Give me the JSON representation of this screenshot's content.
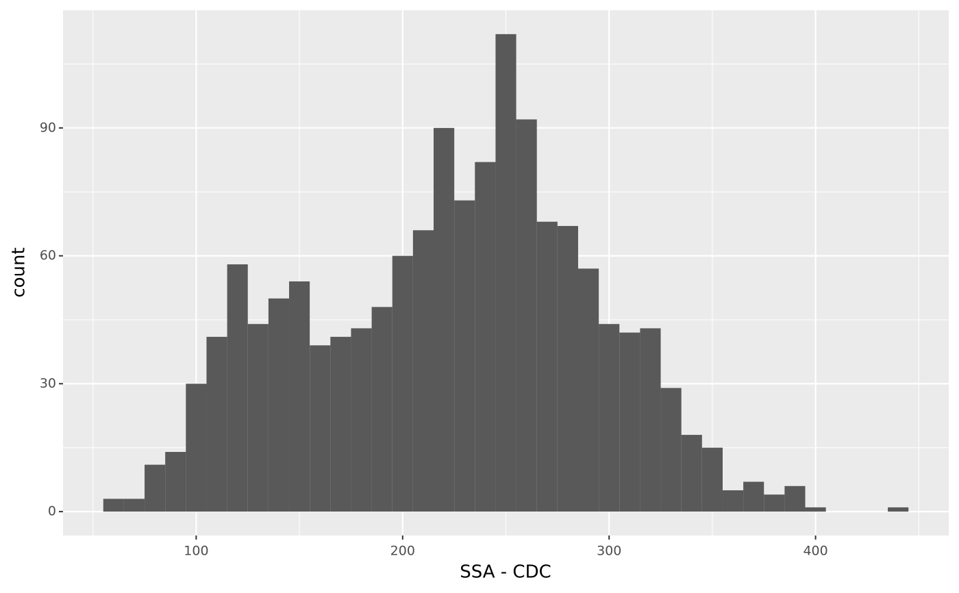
{
  "chart_data": {
    "type": "histogram",
    "x_label": "SSA - CDC",
    "y_label": "count",
    "bins": [
      55,
      65,
      75,
      85,
      95,
      105,
      115,
      125,
      135,
      145,
      155,
      165,
      175,
      185,
      195,
      205,
      215,
      225,
      235,
      245,
      255,
      265,
      275,
      285,
      295,
      305,
      315,
      325,
      335,
      345,
      355,
      365,
      375,
      385,
      395,
      405,
      415,
      425,
      435,
      445
    ],
    "counts": [
      3,
      3,
      11,
      14,
      30,
      41,
      58,
      44,
      50,
      54,
      39,
      41,
      43,
      48,
      60,
      66,
      90,
      73,
      82,
      112,
      92,
      68,
      67,
      57,
      44,
      42,
      43,
      29,
      18,
      15,
      5,
      7,
      4,
      6,
      1,
      0,
      0,
      0,
      1
    ],
    "color": "#595959",
    "background": "#ebebeb",
    "grid": true,
    "xlim": [
      35.5,
      464.5
    ],
    "ylim": [
      -5.6,
      117.6
    ],
    "xticks": [
      100,
      200,
      300,
      400
    ],
    "yticks": [
      0,
      30,
      60,
      90
    ],
    "x_minor_grid": [
      50,
      150,
      250,
      350,
      450
    ],
    "y_minor_grid": [
      15,
      45,
      75,
      105
    ]
  }
}
